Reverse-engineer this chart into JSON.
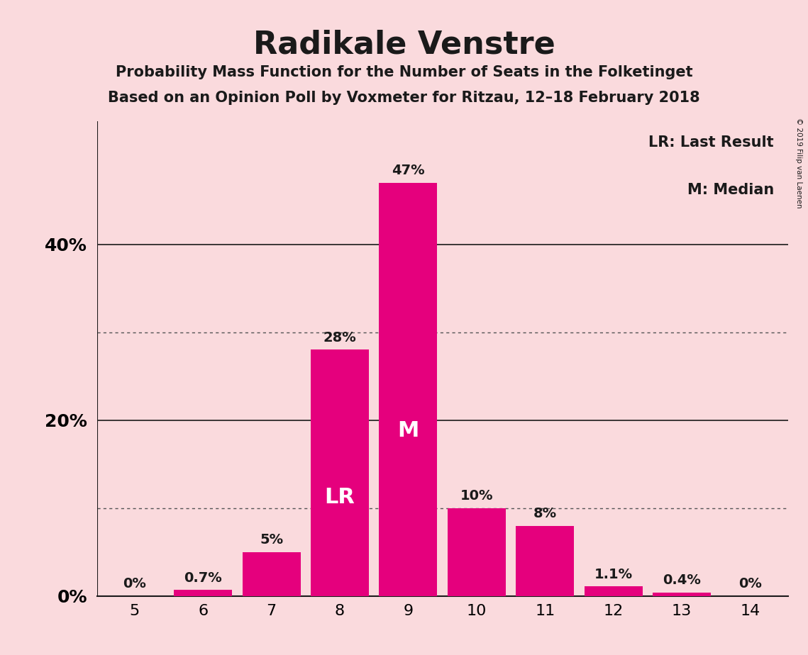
{
  "title": "Radikale Venstre",
  "subtitle1": "Probability Mass Function for the Number of Seats in the Folketinget",
  "subtitle2": "Based on an Opinion Poll by Voxmeter for Ritzau, 12–18 February 2018",
  "categories": [
    5,
    6,
    7,
    8,
    9,
    10,
    11,
    12,
    13,
    14
  ],
  "values": [
    0.0,
    0.7,
    5.0,
    28.0,
    47.0,
    10.0,
    8.0,
    1.1,
    0.4,
    0.0
  ],
  "bar_color": "#E5007D",
  "background_color": "#FADADD",
  "text_color_dark": "#1a1a1a",
  "bar_labels": [
    "0%",
    "0.7%",
    "5%",
    "28%",
    "47%",
    "10%",
    "8%",
    "1.1%",
    "0.4%",
    "0%"
  ],
  "bar_labels_inside": [
    "",
    "",
    "",
    "LR",
    "M",
    "",
    "",
    "",
    "",
    ""
  ],
  "ylim": [
    0,
    54
  ],
  "legend_text1": "LR: Last Result",
  "legend_text2": "M: Median",
  "copyright_text": "© 2019 Filip van Laenen",
  "solid_lines": [
    20,
    40
  ],
  "dotted_lines": [
    10,
    30
  ],
  "ytick_positions": [
    0,
    20,
    40
  ],
  "ytick_labels": [
    "0%",
    "20%",
    "40%"
  ]
}
